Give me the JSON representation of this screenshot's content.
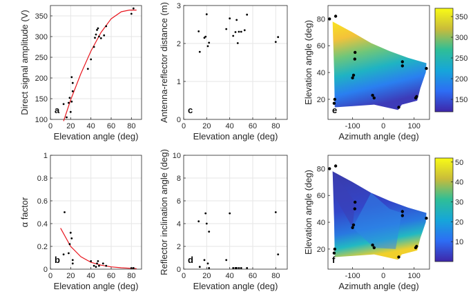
{
  "chart_data": [
    {
      "panel": "a",
      "type": "scatter",
      "xlabel": "Elevation angle (deg)",
      "ylabel": "Direct signal amplitude (V)",
      "xlim": [
        0,
        90
      ],
      "ylim": [
        100,
        375
      ],
      "xticks": [
        0,
        20,
        40,
        60,
        80
      ],
      "yticks": [
        100,
        150,
        200,
        250,
        300,
        350
      ],
      "points": [
        [
          13,
          137
        ],
        [
          16,
          105
        ],
        [
          18,
          140
        ],
        [
          19,
          152
        ],
        [
          20,
          118
        ],
        [
          21,
          202
        ],
        [
          22,
          168
        ],
        [
          22,
          188
        ],
        [
          21,
          143
        ],
        [
          37,
          222
        ],
        [
          40,
          245
        ],
        [
          43,
          275
        ],
        [
          44,
          297
        ],
        [
          45,
          305
        ],
        [
          46,
          316
        ],
        [
          47,
          320
        ],
        [
          48,
          300
        ],
        [
          50,
          296
        ],
        [
          53,
          303
        ],
        [
          55,
          325
        ],
        [
          80,
          355
        ],
        [
          82,
          368
        ]
      ],
      "fit": [
        [
          13,
          96
        ],
        [
          20,
          147
        ],
        [
          30,
          210
        ],
        [
          40,
          265
        ],
        [
          50,
          310
        ],
        [
          60,
          343
        ],
        [
          70,
          360
        ],
        [
          78,
          364
        ],
        [
          85,
          364
        ]
      ],
      "fit_color": "#e8141c",
      "point_color": "#000000"
    },
    {
      "panel": "b",
      "type": "scatter",
      "xlabel": "Elevation angle (deg)",
      "ylabel": "α factor",
      "xlim": [
        0,
        90
      ],
      "ylim": [
        0,
        1
      ],
      "xticks": [
        0,
        20,
        40,
        60,
        80
      ],
      "yticks": [
        0,
        0.2,
        0.4,
        0.6,
        0.8,
        1
      ],
      "points": [
        [
          14,
          0.5
        ],
        [
          13,
          0.13
        ],
        [
          18,
          0.14
        ],
        [
          19,
          0.22
        ],
        [
          20,
          0.32
        ],
        [
          21,
          0.27
        ],
        [
          22,
          0.05
        ],
        [
          22,
          0.08
        ],
        [
          40,
          0.07
        ],
        [
          43,
          0.03
        ],
        [
          45,
          0.02
        ],
        [
          46,
          0.05
        ],
        [
          47,
          0.07
        ],
        [
          48,
          0.03
        ],
        [
          52,
          0.05
        ],
        [
          55,
          0.03
        ],
        [
          80,
          0.01
        ],
        [
          82,
          0.01
        ]
      ],
      "fit": [
        [
          10,
          0.36
        ],
        [
          20,
          0.2
        ],
        [
          30,
          0.11
        ],
        [
          40,
          0.06
        ],
        [
          50,
          0.035
        ],
        [
          60,
          0.02
        ],
        [
          70,
          0.012
        ],
        [
          80,
          0.007
        ],
        [
          85,
          0.005
        ]
      ],
      "fit_color": "#e8141c",
      "point_color": "#000000"
    },
    {
      "panel": "c",
      "type": "scatter",
      "xlabel": "Elevation angle (deg)",
      "ylabel": "Antenna-reflector distance (m)",
      "xlim": [
        0,
        90
      ],
      "ylim": [
        0,
        3
      ],
      "xticks": [
        0,
        20,
        40,
        60,
        80
      ],
      "yticks": [
        0,
        1,
        2,
        3
      ],
      "points": [
        [
          13,
          2.32
        ],
        [
          14,
          1.78
        ],
        [
          18,
          2.15
        ],
        [
          19,
          2.18
        ],
        [
          20,
          2.77
        ],
        [
          21,
          1.93
        ],
        [
          22,
          2.02
        ],
        [
          37,
          2.38
        ],
        [
          40,
          2.66
        ],
        [
          43,
          2.2
        ],
        [
          45,
          2.3
        ],
        [
          46,
          2.62
        ],
        [
          47,
          2.01
        ],
        [
          48,
          2.31
        ],
        [
          50,
          2.31
        ],
        [
          53,
          2.35
        ],
        [
          55,
          2.76
        ],
        [
          80,
          2.04
        ],
        [
          82,
          2.17
        ]
      ],
      "point_color": "#000000"
    },
    {
      "panel": "d",
      "type": "scatter",
      "xlabel": "Elevation angle (deg)",
      "ylabel": "Reflector inclination angle (deg)",
      "xlim": [
        0,
        90
      ],
      "ylim": [
        0,
        10
      ],
      "xticks": [
        0,
        20,
        40,
        60,
        80
      ],
      "yticks": [
        0,
        2,
        4,
        6,
        8,
        10
      ],
      "points": [
        [
          13,
          4.2
        ],
        [
          14,
          0.2
        ],
        [
          18,
          0.8
        ],
        [
          19,
          4.9
        ],
        [
          20,
          4.0
        ],
        [
          21,
          0.5
        ],
        [
          22,
          3.3
        ],
        [
          22,
          0.1
        ],
        [
          37,
          0.8
        ],
        [
          40,
          4.9
        ],
        [
          43,
          0.1
        ],
        [
          45,
          0.1
        ],
        [
          46,
          0.1
        ],
        [
          48,
          0.1
        ],
        [
          50,
          0.1
        ],
        [
          55,
          0.1
        ],
        [
          80,
          5.0
        ],
        [
          82,
          1.3
        ]
      ],
      "point_color": "#000000"
    },
    {
      "panel": "e",
      "type": "heatmap",
      "xlabel": "Azimuth angle (deg)",
      "ylabel": "Elevation angle (deg)",
      "xlim": [
        -180,
        150
      ],
      "ylim": [
        5,
        90
      ],
      "xticks": [
        -100,
        0,
        100
      ],
      "yticks": [
        20,
        40,
        60,
        80
      ],
      "clim": [
        120,
        370
      ],
      "cticks": [
        150,
        200,
        250,
        300,
        350
      ],
      "points": [
        [
          -175,
          80
        ],
        [
          -155,
          82
        ],
        [
          -158,
          20
        ],
        [
          -160,
          17
        ],
        [
          -92,
          55
        ],
        [
          -93,
          50
        ],
        [
          -97,
          38
        ],
        [
          -100,
          36
        ],
        [
          -35,
          23
        ],
        [
          -30,
          21
        ],
        [
          50,
          14
        ],
        [
          62,
          48
        ],
        [
          62,
          45
        ],
        [
          108,
          22
        ],
        [
          105,
          21
        ],
        [
          140,
          43
        ]
      ]
    },
    {
      "panel": "f",
      "type": "heatmap",
      "xlabel": "Azimuth angle (deg)",
      "ylabel": "Elevation angle (deg)",
      "xlim": [
        -180,
        150
      ],
      "ylim": [
        5,
        90
      ],
      "xticks": [
        -100,
        0,
        100
      ],
      "yticks": [
        20,
        40,
        60,
        80
      ],
      "clim": [
        0,
        52
      ],
      "cticks": [
        10,
        20,
        30,
        40,
        50
      ],
      "points": [
        [
          -175,
          80
        ],
        [
          -155,
          82
        ],
        [
          -158,
          20
        ],
        [
          -160,
          17
        ],
        [
          -92,
          55
        ],
        [
          -93,
          50
        ],
        [
          -97,
          38
        ],
        [
          -100,
          36
        ],
        [
          -35,
          23
        ],
        [
          -30,
          21
        ],
        [
          50,
          14
        ],
        [
          62,
          48
        ],
        [
          62,
          45
        ],
        [
          108,
          22
        ],
        [
          105,
          21
        ],
        [
          140,
          43
        ]
      ]
    }
  ]
}
